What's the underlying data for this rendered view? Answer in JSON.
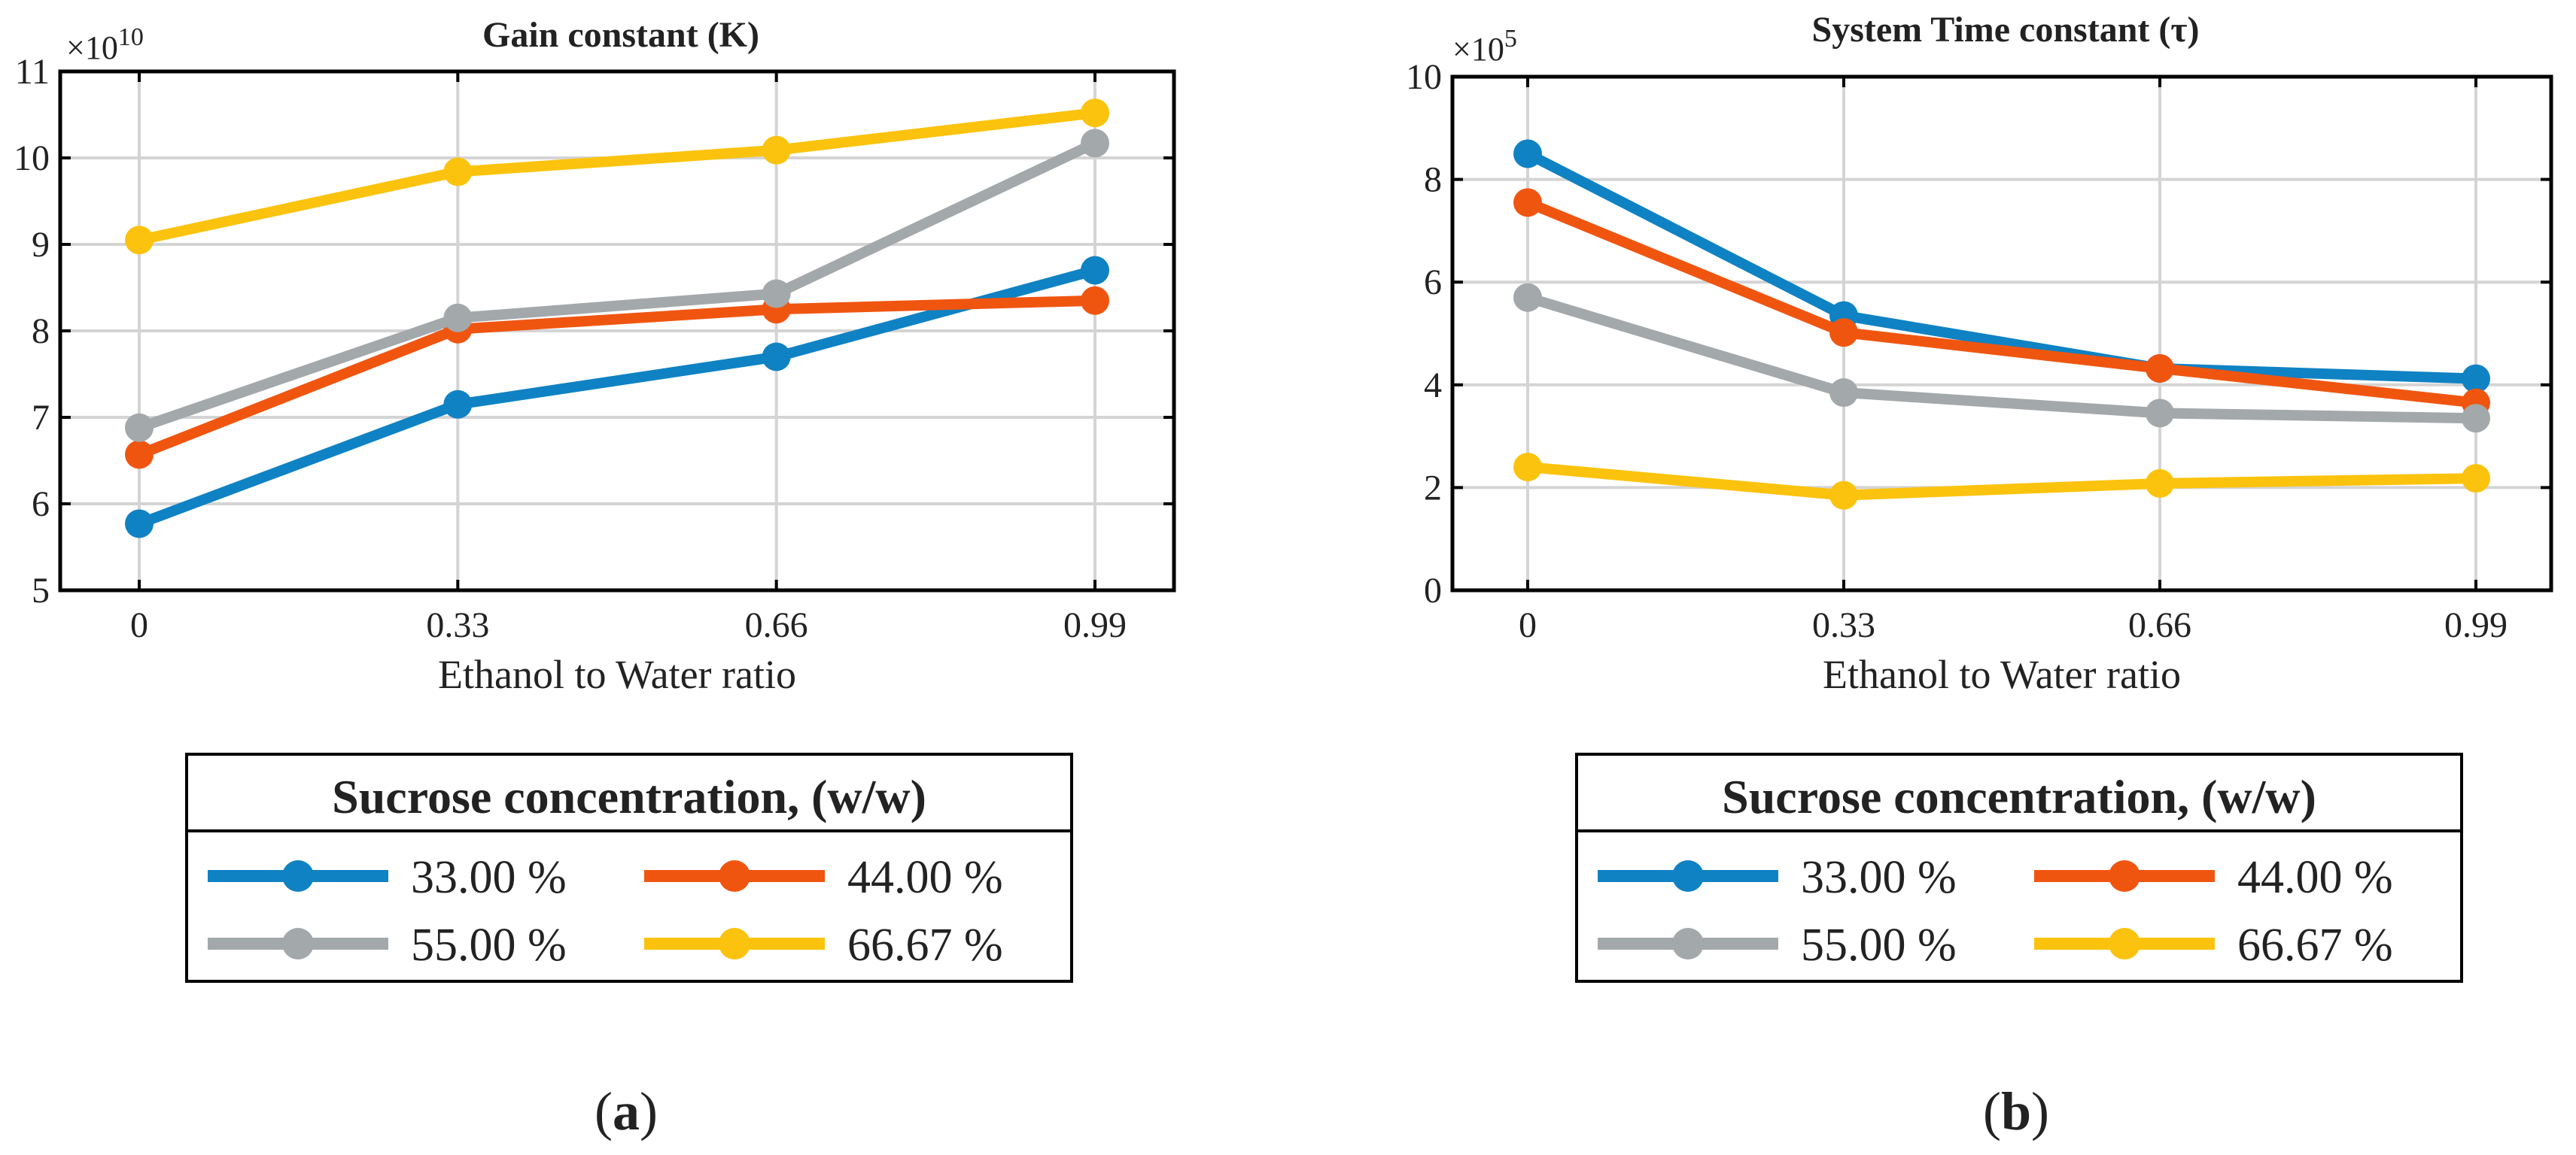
{
  "colors": {
    "s33": "#0f82c4",
    "s44": "#f05510",
    "s55": "#a3a8ab",
    "s66": "#fbc30d",
    "grid": "#d4d4d4",
    "axis": "#000000"
  },
  "chart_data": [
    {
      "type": "line",
      "title": "Gain constant (K)",
      "xlabel": "Ethanol to Water ratio",
      "ylabel": "",
      "x": [
        0,
        0.33,
        0.66,
        0.99
      ],
      "x_tick_labels": [
        "0",
        "0.33",
        "0.66",
        "0.99"
      ],
      "y_ticks": [
        5,
        6,
        7,
        8,
        9,
        10,
        11
      ],
      "y_tick_labels": [
        "5",
        "6",
        "7",
        "8",
        "9",
        "10",
        "11"
      ],
      "ylim": [
        5,
        11
      ],
      "multiplier_base": "×10",
      "multiplier_exp": "10",
      "grid": true,
      "legend_title": "Sucrose concentration, (w/w)",
      "series": [
        {
          "key": "s33",
          "name": "33.00 %",
          "values": [
            5.77,
            7.15,
            7.7,
            8.7
          ]
        },
        {
          "key": "s44",
          "name": "44.00 %",
          "values": [
            6.57,
            8.02,
            8.25,
            8.35
          ]
        },
        {
          "key": "s55",
          "name": "55.00 %",
          "values": [
            6.88,
            8.15,
            8.43,
            10.17
          ]
        },
        {
          "key": "s66",
          "name": "66.67 %",
          "values": [
            9.05,
            9.84,
            10.09,
            10.52
          ]
        }
      ],
      "panel_label": {
        "open": "(",
        "letter": "a",
        "close": ")"
      }
    },
    {
      "type": "line",
      "title": "System Time constant (τ)",
      "xlabel": "Ethanol to Water ratio",
      "ylabel": "",
      "x": [
        0,
        0.33,
        0.66,
        0.99
      ],
      "x_tick_labels": [
        "0",
        "0.33",
        "0.66",
        "0.99"
      ],
      "y_ticks": [
        0,
        2,
        4,
        6,
        8,
        10
      ],
      "y_tick_labels": [
        "0",
        "2",
        "4",
        "6",
        "8",
        "10"
      ],
      "ylim": [
        0,
        10
      ],
      "multiplier_base": "×10",
      "multiplier_exp": "5",
      "grid": true,
      "legend_title": "Sucrose concentration, (w/w)",
      "series": [
        {
          "key": "s33",
          "name": "33.00 %",
          "values": [
            8.5,
            5.35,
            4.32,
            4.12
          ]
        },
        {
          "key": "s44",
          "name": "44.00 %",
          "values": [
            7.55,
            5.02,
            4.32,
            3.65
          ]
        },
        {
          "key": "s55",
          "name": "55.00 %",
          "values": [
            5.7,
            3.85,
            3.45,
            3.35
          ]
        },
        {
          "key": "s66",
          "name": "66.67 %",
          "values": [
            2.4,
            1.85,
            2.08,
            2.18
          ]
        }
      ],
      "panel_label": {
        "open": "(",
        "letter": "b",
        "close": ")"
      }
    }
  ]
}
